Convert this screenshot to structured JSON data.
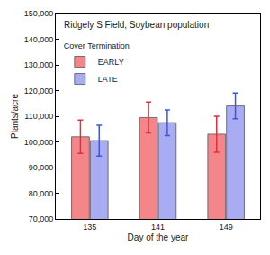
{
  "chart_data": {
    "type": "bar",
    "title": "Ridgely S Field, Soybean population",
    "xlabel": "Day of the year",
    "ylabel": "Plants/acre",
    "legend_title": "Cover Termination",
    "legend": "upper left",
    "categories": [
      "135",
      "141",
      "149"
    ],
    "series": [
      {
        "name": "EARLY",
        "color": "#f4868a",
        "values": [
          102000,
          109500,
          103000
        ],
        "error": [
          6500,
          6000,
          7000
        ]
      },
      {
        "name": "LATE",
        "color": "#a9acf2",
        "values": [
          100500,
          107500,
          114000
        ],
        "error": [
          6000,
          5000,
          5000
        ]
      }
    ],
    "ylim": [
      70000,
      150000
    ],
    "yticks": [
      {
        "value": 70000,
        "label": "70,000"
      },
      {
        "value": 80000,
        "label": "80,000"
      },
      {
        "value": 90000,
        "label": "90,000"
      },
      {
        "value": 100000,
        "label": "100,000"
      },
      {
        "value": 110000,
        "label": "110,000"
      },
      {
        "value": 120000,
        "label": "120,000"
      },
      {
        "value": 130000,
        "label": "130,000"
      },
      {
        "value": 140000,
        "label": "140,000"
      },
      {
        "value": 150000,
        "label": "150,000"
      }
    ],
    "grid": false
  }
}
